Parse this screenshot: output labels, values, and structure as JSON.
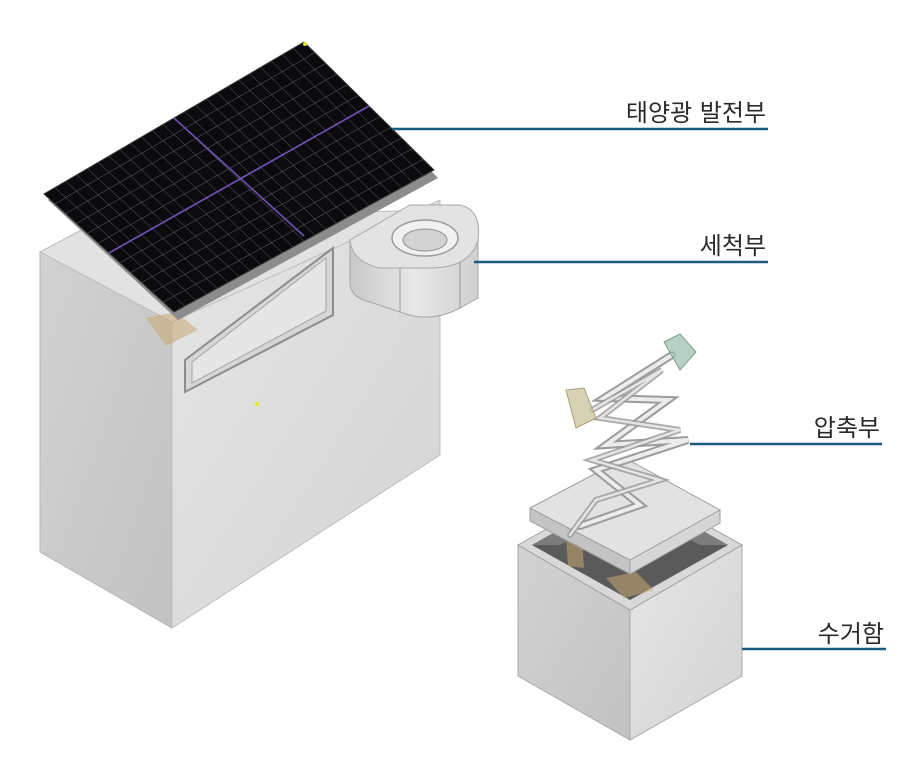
{
  "labels": {
    "solar": "태양광 발전부",
    "wash": "세척부",
    "compress": "압축부",
    "collect": "수거함"
  },
  "colors": {
    "leader_line": "#1d5a80",
    "panel": "#0b0b0e",
    "panel_grid": "#6c6c78",
    "panel_seam": "#7a58c8",
    "body_front": "#dcdcdc",
    "body_side": "#cbcbcb",
    "body_top": "#e4e4e4",
    "hinge_patch": "#c9a871"
  }
}
